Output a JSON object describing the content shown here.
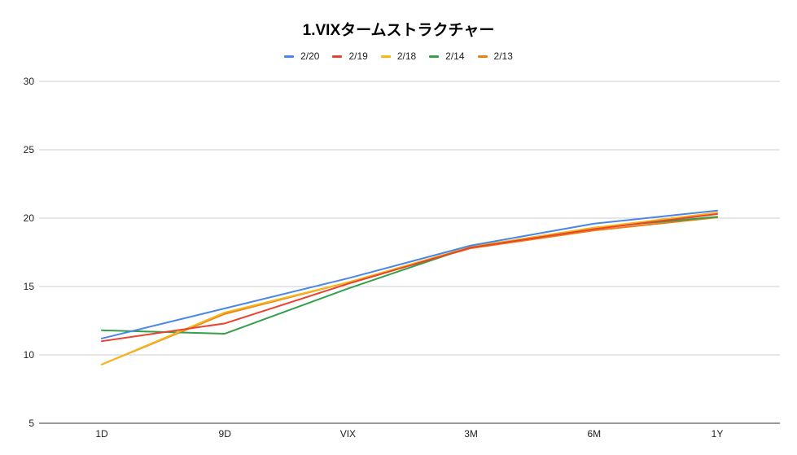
{
  "chart_data": {
    "type": "line",
    "title": "1.VIXタームストラクチャー",
    "xlabel": "",
    "ylabel": "",
    "categories": [
      "1D",
      "9D",
      "VIX",
      "3M",
      "6M",
      "1Y"
    ],
    "ylim": [
      5,
      30
    ],
    "yticks": [
      5,
      10,
      15,
      20,
      25,
      30
    ],
    "grid": true,
    "legend_position": "top",
    "series": [
      {
        "name": "2/20",
        "color": "#4a86e8",
        "values": [
          11.2,
          13.4,
          15.6,
          18.0,
          19.6,
          20.55
        ]
      },
      {
        "name": "2/19",
        "color": "#e8432e",
        "values": [
          11.0,
          12.3,
          15.2,
          17.85,
          19.2,
          20.3
        ]
      },
      {
        "name": "2/18",
        "color": "#f6b617",
        "values": [
          9.3,
          13.1,
          15.3,
          17.9,
          19.3,
          20.4
        ]
      },
      {
        "name": "2/14",
        "color": "#34a04a",
        "values": [
          11.8,
          11.55,
          14.85,
          17.9,
          19.3,
          20.1
        ]
      },
      {
        "name": "2/13",
        "color": "#f07c16",
        "values": [
          9.3,
          13.0,
          15.3,
          17.8,
          19.1,
          20.05
        ]
      }
    ]
  }
}
